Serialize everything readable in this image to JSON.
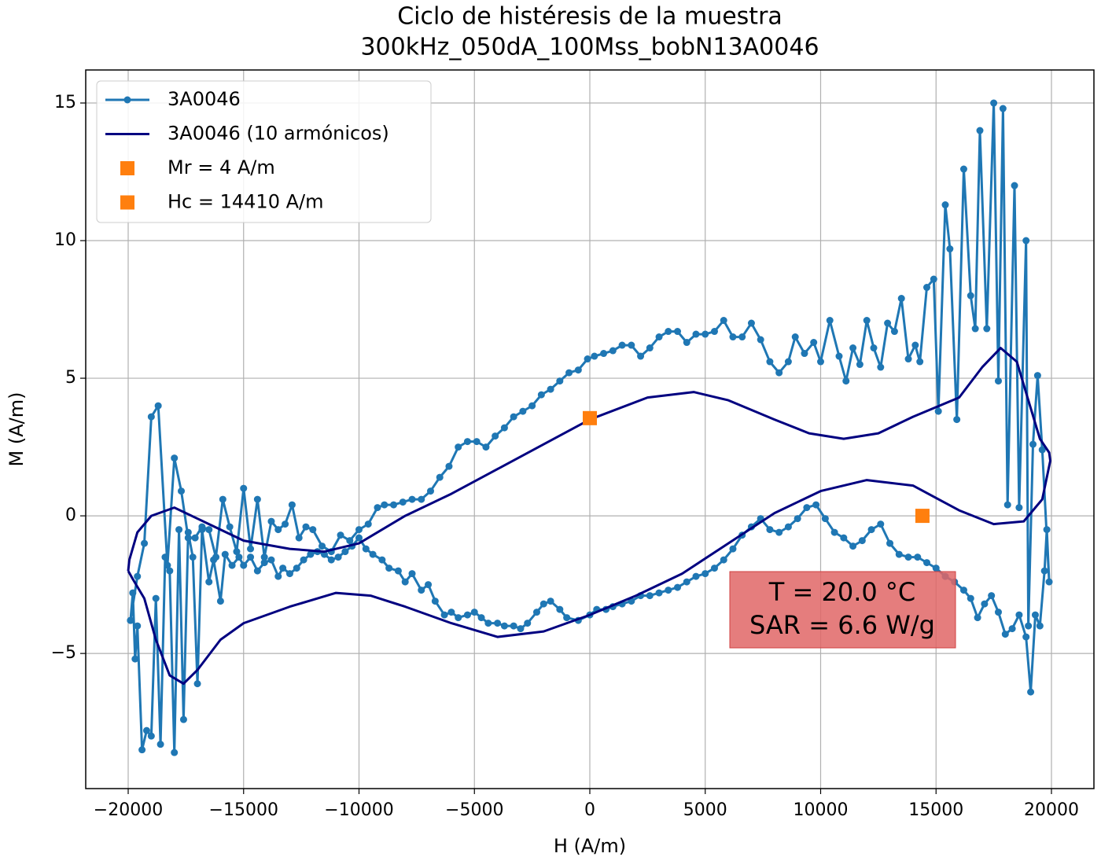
{
  "chart_data": {
    "type": "line",
    "title": [
      "Ciclo de histéresis de la muestra",
      "300kHz_050dA_100Mss_bobN13A0046"
    ],
    "x_label": "H (A/m)",
    "y_label": "M (A/m)",
    "xlim": [
      -21840,
      21840
    ],
    "ylim": [
      -9.91,
      16.2
    ],
    "xticks": [
      {
        "value": -20000,
        "label": "−20000"
      },
      {
        "value": -15000,
        "label": "−15000"
      },
      {
        "value": -10000,
        "label": "−10000"
      },
      {
        "value": -5000,
        "label": "−5000"
      },
      0,
      5000,
      10000,
      15000,
      20000
    ],
    "yticks": [
      {
        "value": -5,
        "label": "−5"
      },
      0,
      5,
      10,
      15
    ],
    "grid": true,
    "legend": "upper left",
    "annotation": [
      "T = 20.0 °C",
      "SAR = 6.6 W/g"
    ],
    "series": [
      {
        "name": "3A0046",
        "color": "#1f77b4",
        "marker": "circle",
        "x": [
          -19900,
          -19800,
          -19700,
          -19600,
          -19400,
          -19200,
          -19000,
          -18800,
          -18600,
          -18400,
          -18200,
          -18000,
          -17800,
          -17600,
          -17400,
          -17200,
          -17000,
          -16800,
          -16500,
          -16300,
          -16000,
          -15800,
          -15500,
          -15200,
          -15000,
          -14700,
          -14400,
          -14100,
          -13800,
          -13500,
          -13300,
          -13000,
          -12700,
          -12400,
          -12100,
          -11800,
          -11500,
          -11200,
          -10900,
          -10600,
          -10300,
          -10000,
          -9700,
          -9400,
          -9000,
          -8700,
          -8300,
          -8000,
          -7700,
          -7300,
          -7000,
          -6700,
          -6300,
          -6000,
          -5700,
          -5300,
          -5000,
          -4700,
          -4400,
          -4000,
          -3700,
          -3300,
          -3000,
          -2700,
          -2300,
          -2000,
          -1700,
          -1300,
          -1000,
          -500,
          0,
          300,
          700,
          1000,
          1400,
          1800,
          2200,
          2600,
          3000,
          3400,
          3800,
          4200,
          4600,
          5000,
          5400,
          5800,
          6200,
          6600,
          7000,
          7400,
          7800,
          8200,
          8600,
          9000,
          9400,
          9800,
          10200,
          10600,
          11000,
          11400,
          11800,
          12200,
          12600,
          13000,
          13400,
          13800,
          14200,
          14600,
          15000,
          15400,
          15800,
          16200,
          16500,
          16800,
          17100,
          17400,
          17700,
          18000,
          18300,
          18600,
          18900,
          19100,
          19300,
          19500,
          19700,
          19800,
          19900,
          19600,
          19400,
          19200,
          19000,
          18900,
          18600,
          18400,
          18100,
          17900,
          17700,
          17500,
          17200,
          16900,
          16700,
          16500,
          16200,
          15900,
          15600,
          15400,
          15100,
          14900,
          14600,
          14300,
          14100,
          13800,
          13500,
          13200,
          12900,
          12600,
          12300,
          12000,
          11700,
          11400,
          11100,
          10800,
          10400,
          10000,
          9700,
          9300,
          8900,
          8600,
          8200,
          7800,
          7400,
          7000,
          6600,
          6200,
          5800,
          5400,
          5000,
          4600,
          4200,
          3800,
          3400,
          3000,
          2600,
          2200,
          1800,
          1400,
          1000,
          600,
          200,
          -100,
          -500,
          -900,
          -1300,
          -1700,
          -2100,
          -2500,
          -2900,
          -3300,
          -3700,
          -4100,
          -4500,
          -4900,
          -5300,
          -5700,
          -6100,
          -6500,
          -6900,
          -7300,
          -7700,
          -8100,
          -8500,
          -8900,
          -9200,
          -9600,
          -10000,
          -10400,
          -10800,
          -11200,
          -11600,
          -12000,
          -12300,
          -12600,
          -12900,
          -13200,
          -13500,
          -13800,
          -14100,
          -14400,
          -14700,
          -15000,
          -15300,
          -15600,
          -15900,
          -16200,
          -16500,
          -16800,
          -17100,
          -17400,
          -17700,
          -18000,
          -18300,
          -18700,
          -19000,
          -19300,
          -19600,
          -19900
        ],
        "values": [
          -3.8,
          -2.8,
          -5.2,
          -4.0,
          -8.5,
          -7.8,
          -8.0,
          -3.0,
          -8.3,
          -1.5,
          -2.0,
          -8.6,
          -0.5,
          -7.4,
          -0.6,
          -1.5,
          -6.1,
          -0.5,
          -2.4,
          -1.6,
          -3.1,
          -1.4,
          -1.8,
          -1.5,
          -1.8,
          -1.5,
          -2.0,
          -1.7,
          -1.6,
          -2.2,
          -1.9,
          -2.1,
          -1.9,
          -1.6,
          -1.4,
          -1.3,
          -1.4,
          -1.6,
          -1.5,
          -1.3,
          -1.1,
          -0.8,
          -1.2,
          -1.4,
          -1.6,
          -1.9,
          -2.0,
          -2.4,
          -2.1,
          -2.7,
          -2.5,
          -3.1,
          -3.6,
          -3.5,
          -3.7,
          -3.6,
          -3.5,
          -3.7,
          -3.9,
          -3.9,
          -4.0,
          -4.0,
          -4.1,
          -3.9,
          -3.5,
          -3.2,
          -3.1,
          -3.4,
          -3.7,
          -3.8,
          -3.6,
          -3.4,
          -3.4,
          -3.3,
          -3.2,
          -3.1,
          -2.9,
          -2.9,
          -2.8,
          -2.7,
          -2.6,
          -2.4,
          -2.2,
          -2.1,
          -1.9,
          -1.6,
          -1.2,
          -0.7,
          -0.4,
          -0.1,
          -0.5,
          -0.6,
          -0.4,
          -0.1,
          0.3,
          0.4,
          -0.1,
          -0.6,
          -0.8,
          -1.1,
          -0.9,
          -0.5,
          -0.3,
          -1.0,
          -1.4,
          -1.5,
          -1.5,
          -1.7,
          -1.9,
          -2.2,
          -2.4,
          -2.7,
          -3.0,
          -3.7,
          -3.2,
          -2.9,
          -3.5,
          -4.3,
          -4.1,
          -3.6,
          -4.4,
          -6.4,
          -3.6,
          -4.0,
          -2.0,
          -0.5,
          -2.4,
          2.4,
          5.1,
          2.6,
          -4.0,
          10.0,
          0.3,
          12.0,
          0.4,
          14.8,
          4.9,
          15.0,
          6.8,
          14.0,
          6.8,
          8.0,
          12.6,
          3.5,
          9.7,
          11.3,
          3.8,
          8.6,
          8.3,
          5.6,
          6.2,
          5.7,
          7.9,
          6.7,
          7.0,
          5.4,
          6.1,
          7.1,
          5.5,
          6.1,
          4.9,
          5.8,
          7.1,
          5.6,
          6.3,
          5.9,
          6.5,
          5.6,
          5.2,
          5.6,
          6.4,
          7.0,
          6.5,
          6.5,
          7.1,
          6.7,
          6.6,
          6.6,
          6.3,
          6.7,
          6.7,
          6.5,
          6.1,
          5.8,
          6.2,
          6.2,
          6.0,
          5.9,
          5.8,
          5.7,
          5.3,
          5.2,
          4.9,
          4.6,
          4.4,
          4.0,
          3.8,
          3.6,
          3.2,
          2.9,
          2.5,
          2.7,
          2.7,
          2.5,
          1.8,
          1.4,
          0.9,
          0.6,
          0.6,
          0.5,
          0.4,
          0.4,
          0.3,
          -0.3,
          -0.5,
          -0.9,
          -0.7,
          -1.3,
          -1.1,
          -0.5,
          -0.4,
          -0.8,
          0.4,
          -0.3,
          -0.5,
          -0.2,
          -1.5,
          0.6,
          -1.2,
          1.0,
          -1.3,
          -0.4,
          0.6,
          -1.5,
          -0.5,
          -0.4,
          -0.8,
          -0.8,
          0.9,
          2.1,
          -1.8,
          4.0,
          3.6,
          -1.0,
          -2.2,
          -3.8
        ]
      },
      {
        "name": "3A0046 (10 armónicos)",
        "color": "#000080",
        "marker": "none",
        "x": [
          -20000,
          -19800,
          -19300,
          -18800,
          -18200,
          -17600,
          -17000,
          -16000,
          -15000,
          -13000,
          -11000,
          -9500,
          -8000,
          -6000,
          -4000,
          -2000,
          0,
          2000,
          4000,
          6000,
          8000,
          10000,
          12000,
          14000,
          16000,
          17500,
          18800,
          19600,
          19950,
          19900,
          19500,
          19000,
          18500,
          17800,
          17000,
          16000,
          14000,
          12500,
          11000,
          9500,
          8000,
          6000,
          4500,
          2500,
          0,
          -2000,
          -4000,
          -6000,
          -8000,
          -10000,
          -11500,
          -13000,
          -15000,
          -16500,
          -18000,
          -19000,
          -19600,
          -19950,
          -20000
        ],
        "values": [
          -2.0,
          -2.3,
          -3.0,
          -4.5,
          -5.8,
          -6.1,
          -5.6,
          -4.5,
          -3.9,
          -3.3,
          -2.8,
          -2.9,
          -3.3,
          -3.9,
          -4.4,
          -4.2,
          -3.6,
          -2.9,
          -2.1,
          -1.0,
          0.1,
          0.9,
          1.3,
          1.1,
          0.2,
          -0.3,
          -0.2,
          0.6,
          2.0,
          2.3,
          2.8,
          4.2,
          5.6,
          6.1,
          5.4,
          4.3,
          3.6,
          3.0,
          2.8,
          3.0,
          3.5,
          4.2,
          4.5,
          4.3,
          3.5,
          2.6,
          1.7,
          0.8,
          0.0,
          -1.0,
          -1.3,
          -1.2,
          -0.9,
          -0.3,
          0.3,
          0.0,
          -0.6,
          -1.6,
          -2.0
        ]
      },
      {
        "name": "Mr = 4 A/m",
        "color": "#ff7f0e",
        "marker": "square",
        "x": [
          0
        ],
        "values": [
          3.55
        ]
      },
      {
        "name": "Hc = 14410 A/m",
        "color": "#ff7f0e",
        "marker": "square",
        "x": [
          14410
        ],
        "values": [
          0
        ]
      }
    ]
  }
}
